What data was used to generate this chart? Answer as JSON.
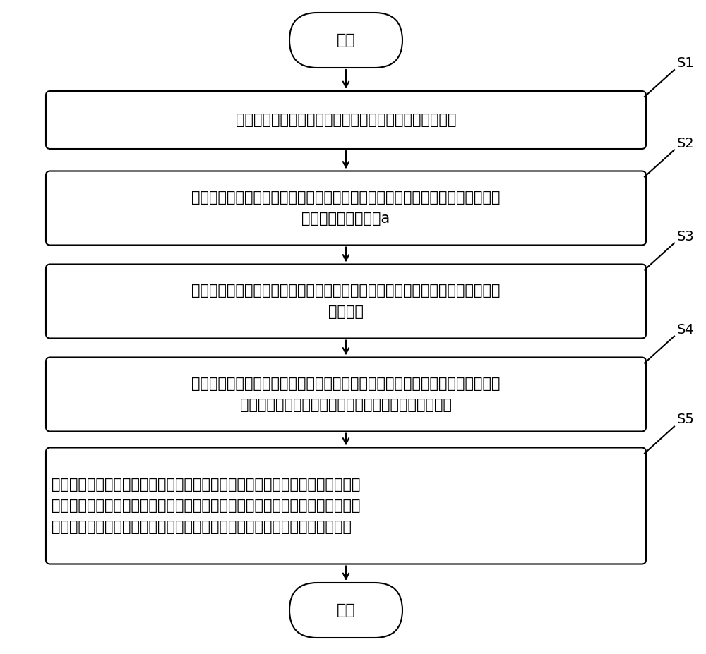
{
  "background_color": "#ffffff",
  "start_end_label": [
    "开始",
    "结束"
  ],
  "steps": [
    {
      "id": "S1",
      "lines": [
        "解码探测器模块的符合事件的数据包，获取各像素的能谱"
      ],
      "align": "center"
    },
    {
      "id": "S2",
      "lines": [
        "将各像素的能谱平移至预设全能峰，每个像素的能谱的能量值的平移距离记为各",
        "像素的能量修正系数a"
      ],
      "align": "center"
    },
    {
      "id": "S3",
      "lines": [
        "获取各像素的修正后能量值，并根据各像素的修正后能量值获取探测器模块的能",
        "量分辨率"
      ],
      "align": "center"
    },
    {
      "id": "S4",
      "lines": [
        "设定一预设能量窗范围；获取任意两探测器模块的符合事件，一对像素的能量值",
        "均位于预设能量窗范围内的符合事件记为选定符合事件"
      ],
      "align": "center"
    },
    {
      "id": "S5",
      "lines": [
        "获取选定符合事件的时间修正常数和时间分辨率；并获取两探测器模块的每个探",
        "测器模块内的所有选定符合事件的时间分辨率分布；通过任意两探测器模块的选",
        "定符合事件的时间差分布获取该任意两探测器模块的时间差分布和时间分辨率"
      ],
      "align": "left"
    }
  ],
  "box_facecolor": "#ffffff",
  "box_edgecolor": "#000000",
  "arrow_color": "#000000",
  "text_color": "#000000",
  "font_size": 15,
  "step_font_size": 14,
  "lw": 1.5
}
